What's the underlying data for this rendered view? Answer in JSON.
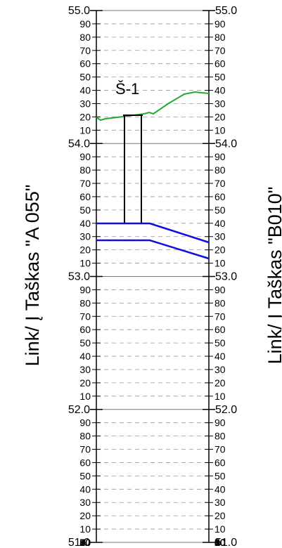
{
  "left_label": "Link/ Į Taškas \"A 055\"",
  "right_label": "Link/ Į Taškas \"B010\"",
  "node_label": "Š-1",
  "axis": {
    "min": 51.0,
    "max": 55.0,
    "major_labels": [
      "55.0",
      "54.0",
      "53.0",
      "52.0",
      "51.0"
    ],
    "minor_labels": [
      "90",
      "80",
      "70",
      "60",
      "50",
      "40",
      "30",
      "20",
      "10"
    ],
    "bottom_label": "00"
  },
  "colors": {
    "ground": "#22aa33",
    "pipe": "#1010dd",
    "grid_major": "#777777",
    "grid_minor": "#999999",
    "frame": "#000000"
  }
}
